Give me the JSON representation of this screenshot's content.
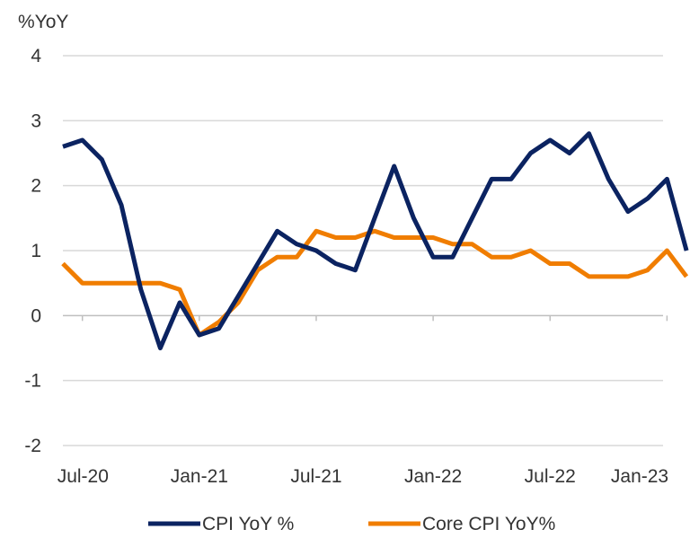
{
  "chart_data": {
    "type": "line",
    "title": "",
    "ylabel": "%YoY",
    "xlabel": "",
    "ylim": [
      -2,
      4
    ],
    "yticks": [
      4,
      3,
      2,
      1,
      0,
      -1,
      -2
    ],
    "x_tick_labels": [
      "Jul-20",
      "Jan-21",
      "Jul-21",
      "Jan-22",
      "Jul-22",
      "Jan-23"
    ],
    "months": [
      "Jun-20",
      "Jul-20",
      "Aug-20",
      "Sep-20",
      "Oct-20",
      "Nov-20",
      "Dec-20",
      "Jan-21",
      "Feb-21",
      "Mar-21",
      "Apr-21",
      "May-21",
      "Jun-21",
      "Jul-21",
      "Aug-21",
      "Sep-21",
      "Oct-21",
      "Nov-21",
      "Dec-21",
      "Jan-22",
      "Feb-22",
      "Mar-22",
      "Apr-22",
      "May-22",
      "Jun-22",
      "Jul-22",
      "Aug-22",
      "Sep-22",
      "Oct-22",
      "Nov-22",
      "Dec-22",
      "Jan-23",
      "Feb-23"
    ],
    "grid": "horizontal",
    "legend_position": "bottom",
    "series": [
      {
        "name": "CPI YoY %",
        "color": "#0b2361",
        "values": [
          2.6,
          2.7,
          2.4,
          1.7,
          0.4,
          -0.5,
          0.2,
          -0.3,
          -0.2,
          0.3,
          0.8,
          1.3,
          1.1,
          1.0,
          0.8,
          0.7,
          1.5,
          2.3,
          1.5,
          0.9,
          0.9,
          1.5,
          2.1,
          2.1,
          2.5,
          2.7,
          2.5,
          2.8,
          2.1,
          1.6,
          1.8,
          2.1,
          1.0
        ]
      },
      {
        "name": "Core CPI YoY%",
        "color": "#f07d00",
        "values": [
          0.8,
          0.5,
          0.5,
          0.5,
          0.5,
          0.5,
          0.4,
          -0.3,
          -0.1,
          0.2,
          0.7,
          0.9,
          0.9,
          1.3,
          1.2,
          1.2,
          1.3,
          1.2,
          1.2,
          1.2,
          1.1,
          1.1,
          0.9,
          0.9,
          1.0,
          0.8,
          0.8,
          0.6,
          0.6,
          0.6,
          0.7,
          1.0,
          0.6
        ]
      }
    ]
  }
}
